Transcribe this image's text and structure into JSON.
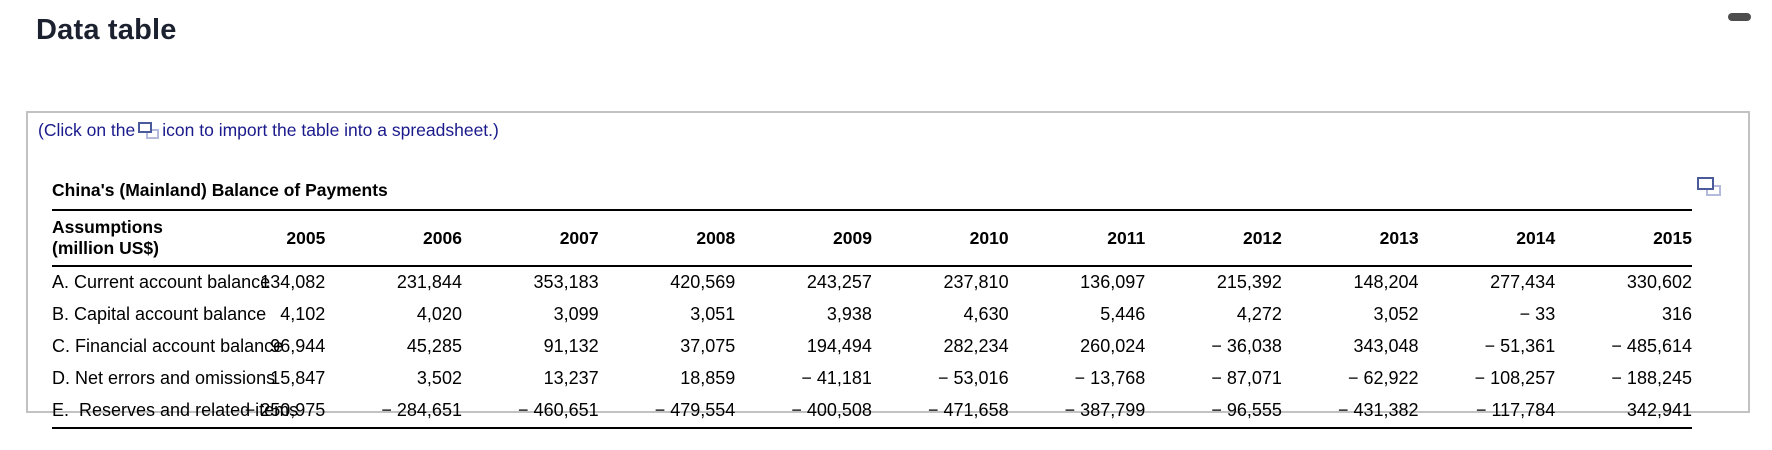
{
  "page": {
    "title": "Data table"
  },
  "panel": {
    "note_prefix": "(Click on the",
    "note_suffix": "icon to import the table into a spreadsheet.)"
  },
  "table": {
    "title": "China's (Mainland) Balance of Payments",
    "row_header_label": "Assumptions (million US$)",
    "years": [
      "2005",
      "2006",
      "2007",
      "2008",
      "2009",
      "2010",
      "2011",
      "2012",
      "2013",
      "2014",
      "2015"
    ],
    "rows": [
      {
        "label": "A. Current account balance",
        "values": [
          "134,082",
          "231,844",
          "353,183",
          "420,569",
          "243,257",
          "237,810",
          "136,097",
          "215,392",
          "148,204",
          "277,434",
          "330,602"
        ]
      },
      {
        "label": "B. Capital account balance",
        "values": [
          "4,102",
          "4,020",
          "3,099",
          "3,051",
          "3,938",
          "4,630",
          "5,446",
          "4,272",
          "3,052",
          "− 33",
          "316"
        ]
      },
      {
        "label": "C. Financial account balance",
        "values": [
          "96,944",
          "45,285",
          "91,132",
          "37,075",
          "194,494",
          "282,234",
          "260,024",
          "− 36,038",
          "343,048",
          "− 51,361",
          "− 485,614"
        ]
      },
      {
        "label": "D. Net errors and omissions",
        "values": [
          "15,847",
          "3,502",
          "13,237",
          "18,859",
          "− 41,181",
          "− 53,016",
          "− 13,768",
          "− 87,071",
          "− 62,922",
          "− 108,257",
          "− 188,245"
        ]
      },
      {
        "label": "E.  Reserves and related items",
        "values": [
          "− 250,975",
          "− 284,651",
          "− 460,651",
          "− 479,554",
          "− 400,508",
          "− 471,658",
          "− 387,799",
          "− 96,555",
          "− 431,382",
          "− 117,784",
          "342,941"
        ]
      }
    ]
  },
  "colors": {
    "heading_text": "#1c2130",
    "note_text": "#1a1a8c",
    "table_text": "#000000",
    "panel_border": "#c2c2c2",
    "icon_front": "#4a5a9b",
    "icon_back": "#b3badb",
    "top_bar": "#4d4d4d"
  }
}
